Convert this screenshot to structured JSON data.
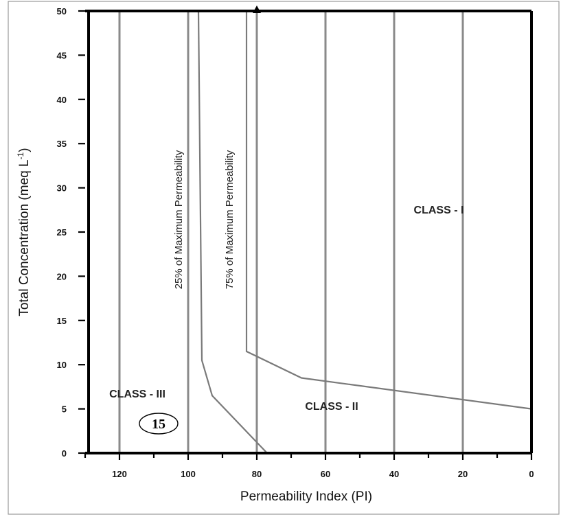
{
  "chart_data": {
    "type": "line",
    "xlabel": "Permeability Index (PI)",
    "ylabel_main": "Total Concentration (meq L",
    "ylabel_sup": "-1",
    "ylabel_close": ")",
    "xlim": [
      130,
      0
    ],
    "ylim": [
      0,
      50
    ],
    "x_ticks": [
      120,
      100,
      80,
      60,
      40,
      20,
      0
    ],
    "x_tick_labels": [
      "120",
      "100",
      "80",
      "60",
      "40",
      "20",
      "0"
    ],
    "y_ticks": [
      0,
      5,
      10,
      15,
      20,
      25,
      30,
      35,
      40,
      45,
      50
    ],
    "y_tick_labels": [
      "0",
      "5",
      "10",
      "15",
      "20",
      "25",
      "30",
      "35",
      "40",
      "45",
      "50"
    ],
    "grid_x": [
      120,
      100,
      80,
      60,
      40,
      20
    ],
    "grid": true,
    "series": [
      {
        "name": "25% of Maximum Permeability",
        "points": [
          [
            97,
            50
          ],
          [
            96,
            10.5
          ],
          [
            93,
            6.5
          ],
          [
            77,
            0
          ]
        ]
      },
      {
        "name": "75% of Maximum Permeability",
        "points": [
          [
            83,
            50
          ],
          [
            83,
            11.5
          ],
          [
            67,
            8.5
          ],
          [
            0,
            5
          ]
        ]
      }
    ],
    "annotations": {
      "class_1": "CLASS - I",
      "class_2": "CLASS - II",
      "class_3": "CLASS - III",
      "figure_number": "15"
    },
    "marker": {
      "x": 80,
      "y": 50,
      "shape": "triangle"
    }
  }
}
